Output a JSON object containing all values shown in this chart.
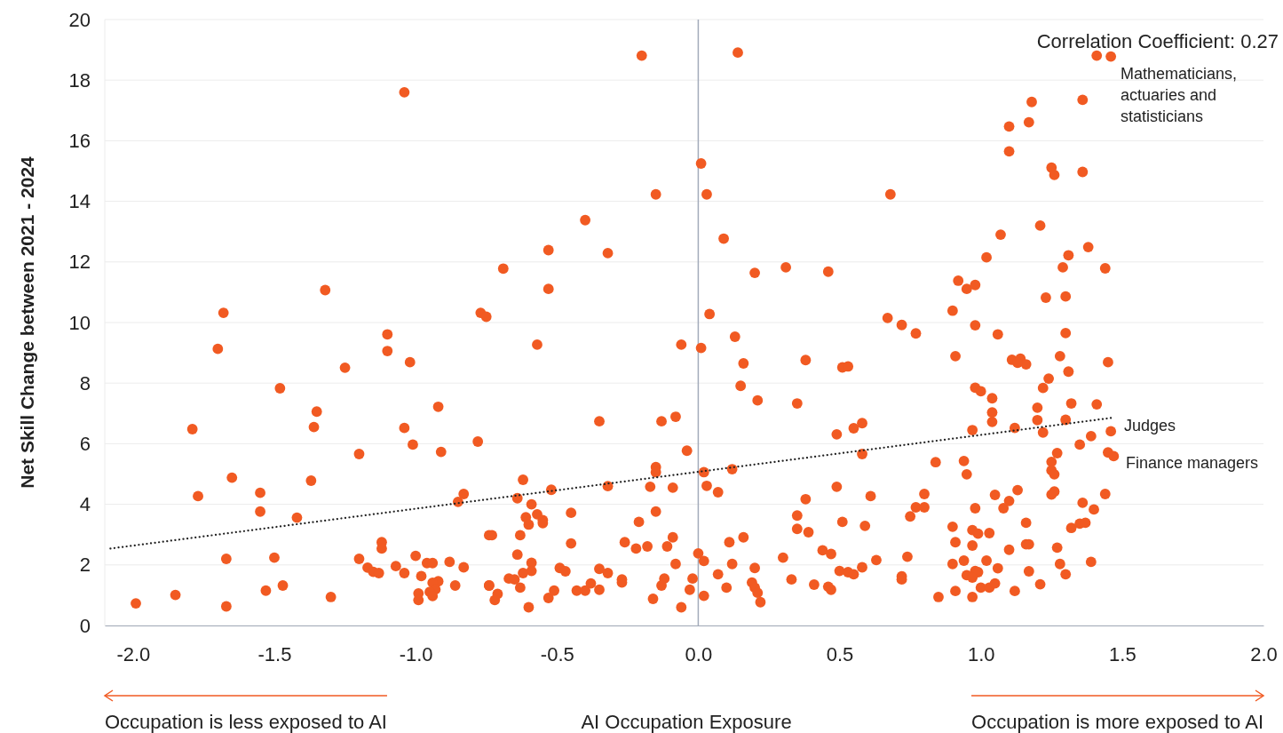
{
  "chart_data": {
    "type": "scatter",
    "ylabel": "Net Skill Change between 2021 - 2024",
    "xlabel": "AI Occupation Exposure",
    "xlim": [
      -2.1,
      2.0
    ],
    "xticks": [
      {
        "value": -2,
        "label": "-2.0"
      },
      {
        "value": -1.5,
        "label": "-1.5"
      },
      {
        "value": -1,
        "label": "-1.0"
      },
      {
        "value": -0.5,
        "label": "-0.5"
      },
      {
        "value": 0,
        "label": "0.0"
      },
      {
        "value": 0.5,
        "label": "0.5"
      },
      {
        "value": 1,
        "label": "1.0"
      },
      {
        "value": 1.5,
        "label": "1.5"
      },
      {
        "value": 2,
        "label": "2.0"
      }
    ],
    "ylim": [
      0,
      20
    ],
    "yticks": [
      0,
      2,
      4,
      6,
      8,
      10,
      12,
      14,
      16,
      18,
      20
    ],
    "grid": "y",
    "marker": "circle",
    "ref_lines": [
      {
        "axis": "x",
        "value": 0,
        "color": "#a3abba"
      }
    ],
    "annotations": [
      "Correlation Coefficient: 0.27",
      "Occupation is less exposed to AI",
      "Occupation is more exposed to AI",
      "Mathematicians, actuaries and statisticians",
      "Judges",
      "Finance managers"
    ],
    "series": [
      {
        "type": "scatter",
        "color": "#f15a22",
        "x": [
          -1.04,
          -1.68,
          -1.32,
          -0.77,
          -0.75,
          -1.7,
          -1.1,
          -1.1,
          -1.02,
          -1.25,
          -1.48,
          -1.35,
          -1.36,
          -0.92,
          -1.79,
          -1.04,
          -1.01,
          -0.91,
          -0.78,
          -1.2,
          -1.65,
          -1.37,
          -1.77,
          -1.55,
          -1.55,
          -1.42,
          -0.85,
          -0.83,
          -0.74,
          -1.12,
          -1.12,
          -1.67,
          -1.5,
          -1.2,
          -1.0,
          -0.96,
          -0.94,
          -0.88,
          -1.17,
          -1.15,
          -1.13,
          -1.07,
          -1.04,
          -0.83,
          -0.98,
          -0.92,
          -0.94,
          -0.86,
          -0.93,
          -0.99,
          -0.95,
          -0.94,
          -0.99,
          -1.47,
          -1.53,
          -1.3,
          -1.85,
          -1.99,
          -1.67,
          -0.74,
          -0.2,
          0.14,
          0.01,
          -0.15,
          0.03,
          -0.4,
          -0.53,
          -0.32,
          0.09,
          -0.69,
          -0.53,
          0.2,
          0.31,
          0.46,
          0.04,
          -0.57,
          -0.06,
          0.01,
          0.13,
          0.16,
          0.15,
          0.21,
          0.38,
          0.51,
          0.53,
          0.35,
          -0.35,
          -0.13,
          -0.08,
          -0.04,
          0.49,
          0.55,
          0.58,
          0.58,
          -0.15,
          -0.15,
          0.02,
          0.12,
          -0.62,
          -0.52,
          -0.32,
          -0.17,
          -0.09,
          0.03,
          0.07,
          -0.64,
          0.49,
          0.38,
          0.61,
          -0.59,
          -0.61,
          -0.57,
          -0.55,
          -0.6,
          -0.55,
          -0.45,
          -0.15,
          -0.21,
          0.35,
          0.51,
          0.35,
          0.39,
          0.59,
          -0.73,
          -0.63,
          -0.45,
          -0.26,
          -0.22,
          -0.18,
          -0.11,
          -0.09,
          0.11,
          0.16,
          0.3,
          0.44,
          0.47,
          0.63,
          0.58,
          0.5,
          0.53,
          0.55,
          -0.64,
          -0.59,
          -0.59,
          -0.62,
          -0.49,
          -0.47,
          -0.35,
          -0.32,
          -0.08,
          0.0,
          0.02,
          0.12,
          0.2,
          -0.67,
          -0.65,
          -0.74,
          -0.63,
          -0.27,
          -0.27,
          -0.12,
          -0.02,
          0.07,
          0.33,
          -0.71,
          -0.72,
          -0.6,
          -0.53,
          -0.51,
          -0.43,
          -0.38,
          -0.4,
          -0.35,
          -0.13,
          -0.16,
          -0.06,
          -0.03,
          0.02,
          0.1,
          0.19,
          0.2,
          0.21,
          0.22,
          0.41,
          0.46,
          0.47,
          1.41,
          1.46,
          1.18,
          1.36,
          1.1,
          1.17,
          1.1,
          1.25,
          1.26,
          1.36,
          0.68,
          1.21,
          1.07,
          1.38,
          1.02,
          1.31,
          1.29,
          1.44,
          0.92,
          0.95,
          0.98,
          1.23,
          1.3,
          0.9,
          0.67,
          0.72,
          0.98,
          0.77,
          1.06,
          1.3,
          0.91,
          1.11,
          1.14,
          1.16,
          1.13,
          1.28,
          1.45,
          1.31,
          1.24,
          1.22,
          0.98,
          1.0,
          1.04,
          1.2,
          1.32,
          1.41,
          1.04,
          1.04,
          1.2,
          1.3,
          0.97,
          1.12,
          1.22,
          1.46,
          1.39,
          1.35,
          1.27,
          1.45,
          1.47,
          0.84,
          0.94,
          0.95,
          1.25,
          1.25,
          1.26,
          0.8,
          1.13,
          1.05,
          1.1,
          1.08,
          1.25,
          1.26,
          1.44,
          1.36,
          1.4,
          0.77,
          0.8,
          0.75,
          0.98,
          1.16,
          1.32,
          1.35,
          1.37,
          0.9,
          0.97,
          0.99,
          1.03,
          0.91,
          0.97,
          1.1,
          1.16,
          1.17,
          1.27,
          0.74,
          1.39,
          1.28,
          0.9,
          0.94,
          1.02,
          1.06,
          1.17,
          1.3,
          0.98,
          0.99,
          0.95,
          0.97,
          0.72,
          0.72,
          1.21,
          1.0,
          1.03,
          1.05,
          0.91,
          1.12,
          0.85,
          0.97
        ],
        "values": [
          17.6,
          10.32,
          11.07,
          10.32,
          10.19,
          9.13,
          9.61,
          9.06,
          8.69,
          8.51,
          7.83,
          7.06,
          6.55,
          7.22,
          6.48,
          6.52,
          5.97,
          5.73,
          6.07,
          5.66,
          4.88,
          4.78,
          4.27,
          4.38,
          3.76,
          3.56,
          4.08,
          4.34,
          2.98,
          2.75,
          2.54,
          2.2,
          2.24,
          2.2,
          2.3,
          2.06,
          2.06,
          2.1,
          1.91,
          1.77,
          1.73,
          1.96,
          1.73,
          1.92,
          1.63,
          1.46,
          1.41,
          1.32,
          1.19,
          1.06,
          1.11,
          0.97,
          0.84,
          1.32,
          1.15,
          0.94,
          1.01,
          0.73,
          0.63,
          1.32,
          18.81,
          18.91,
          15.25,
          14.23,
          14.23,
          13.38,
          12.39,
          12.29,
          12.77,
          11.78,
          11.11,
          11.64,
          11.82,
          11.68,
          10.28,
          9.27,
          9.27,
          9.16,
          9.53,
          8.65,
          7.91,
          7.43,
          8.76,
          8.52,
          8.55,
          7.33,
          6.74,
          6.74,
          6.89,
          5.77,
          6.31,
          6.51,
          6.68,
          5.66,
          5.23,
          5.06,
          5.06,
          5.16,
          4.81,
          4.48,
          4.6,
          4.58,
          4.55,
          4.61,
          4.4,
          4.2,
          4.58,
          4.17,
          4.27,
          4.0,
          3.57,
          3.67,
          3.48,
          3.33,
          3.38,
          3.72,
          3.76,
          3.42,
          3.63,
          3.42,
          3.19,
          3.08,
          3.29,
          2.98,
          2.98,
          2.71,
          2.75,
          2.54,
          2.61,
          2.61,
          2.91,
          2.75,
          2.91,
          2.24,
          2.48,
          2.36,
          2.16,
          1.92,
          1.8,
          1.76,
          1.69,
          2.34,
          2.07,
          1.8,
          1.73,
          1.9,
          1.79,
          1.87,
          1.73,
          2.03,
          2.38,
          2.13,
          2.03,
          1.9,
          1.55,
          1.52,
          1.32,
          1.25,
          1.52,
          1.42,
          1.55,
          1.55,
          1.69,
          1.52,
          1.04,
          0.84,
          0.6,
          0.91,
          1.15,
          1.15,
          1.39,
          1.15,
          1.18,
          1.32,
          0.88,
          0.6,
          1.18,
          0.98,
          1.25,
          1.42,
          1.25,
          1.08,
          0.77,
          1.35,
          1.28,
          1.18,
          18.81,
          18.78,
          17.28,
          17.35,
          16.47,
          16.61,
          15.65,
          15.11,
          14.87,
          14.97,
          14.23,
          13.2,
          12.9,
          12.49,
          12.15,
          12.22,
          11.82,
          11.79,
          11.38,
          11.11,
          11.24,
          10.82,
          10.86,
          10.39,
          10.15,
          9.92,
          9.91,
          9.64,
          9.61,
          9.65,
          8.89,
          8.77,
          8.81,
          8.62,
          8.67,
          8.89,
          8.69,
          8.38,
          8.15,
          7.84,
          7.85,
          7.73,
          7.5,
          7.19,
          7.33,
          7.3,
          7.03,
          6.72,
          6.78,
          6.79,
          6.45,
          6.52,
          6.37,
          6.41,
          6.25,
          5.97,
          5.69,
          5.71,
          5.59,
          5.39,
          5.43,
          4.99,
          5.4,
          5.12,
          4.99,
          4.34,
          4.47,
          4.31,
          4.11,
          3.87,
          4.32,
          4.42,
          4.34,
          4.05,
          3.83,
          3.9,
          3.9,
          3.6,
          3.87,
          3.39,
          3.22,
          3.36,
          3.39,
          3.26,
          3.15,
          3.03,
          3.05,
          2.75,
          2.64,
          2.5,
          2.68,
          2.68,
          2.57,
          2.27,
          2.1,
          2.03,
          2.03,
          2.14,
          2.14,
          1.89,
          1.79,
          1.69,
          1.8,
          1.76,
          1.66,
          1.58,
          1.62,
          1.52,
          1.36,
          1.25,
          1.25,
          1.39,
          1.14,
          1.14,
          0.94,
          0.94
        ]
      },
      {
        "type": "line",
        "color": "#222222",
        "line_style": "dotted",
        "marker": "none",
        "x": [
          -2.08,
          1.46
        ],
        "values": [
          2.54,
          6.85
        ]
      }
    ]
  }
}
